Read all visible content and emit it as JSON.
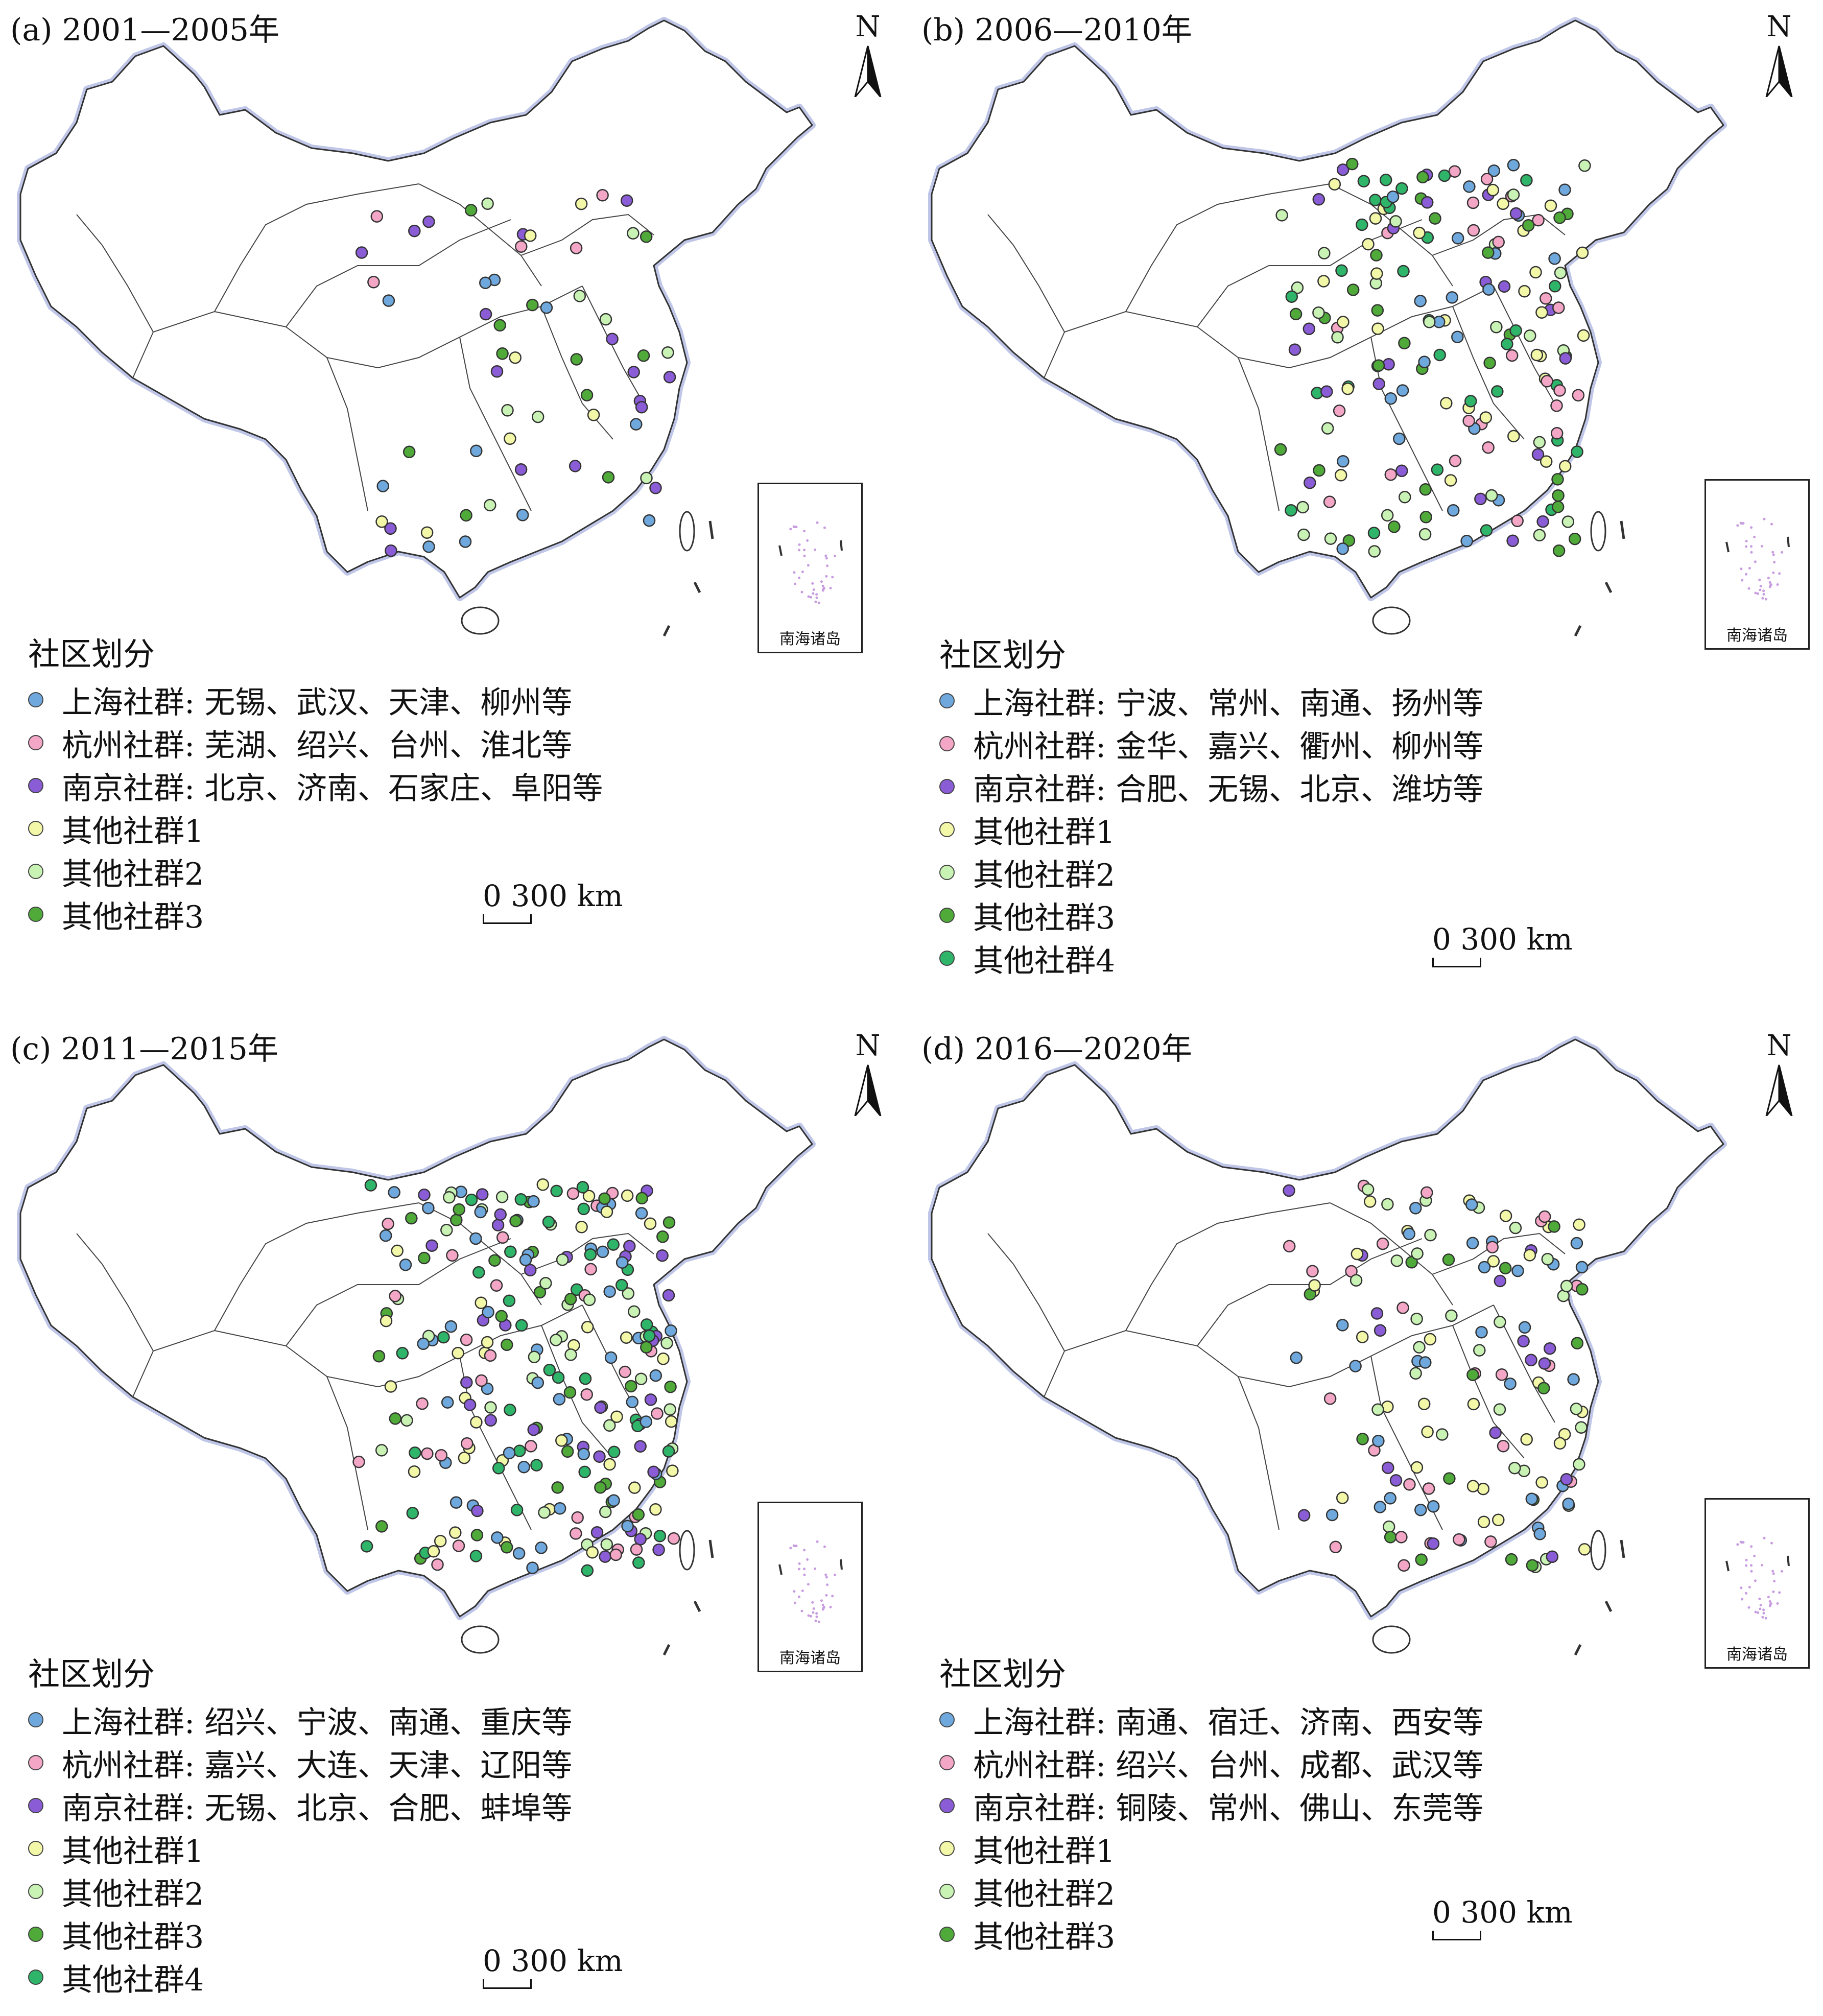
{
  "colors": {
    "shanghai": "#6fa8dc",
    "hangzhou": "#f4a6c6",
    "nanjing": "#8a5cd6",
    "other1": "#f3f7a8",
    "other2": "#c9f2b5",
    "other3": "#4faa3a",
    "other4": "#2fb56a"
  },
  "inset_label": "南海诸岛",
  "north_label": "N",
  "panels": [
    {
      "title": "(a) 2001—2005年",
      "legend_title": "社区划分",
      "legend": [
        {
          "key": "shanghai",
          "label": "上海社群: 无锡、武汉、天津、柳州等"
        },
        {
          "key": "hangzhou",
          "label": "杭州社群: 芜湖、绍兴、台州、淮北等"
        },
        {
          "key": "nanjing",
          "label": "南京社群: 北京、济南、石家庄、阜阳等"
        },
        {
          "key": "other1",
          "label": "其他社群1"
        },
        {
          "key": "other2",
          "label": "其他社群2"
        },
        {
          "key": "other3",
          "label": "其他社群3"
        }
      ],
      "scale": "0  300 km"
    },
    {
      "title": "(b) 2006—2010年",
      "legend_title": "社区划分",
      "legend": [
        {
          "key": "shanghai",
          "label": "上海社群: 宁波、常州、南通、扬州等"
        },
        {
          "key": "hangzhou",
          "label": "杭州社群: 金华、嘉兴、衢州、柳州等"
        },
        {
          "key": "nanjing",
          "label": "南京社群: 合肥、无锡、北京、潍坊等"
        },
        {
          "key": "other1",
          "label": "其他社群1"
        },
        {
          "key": "other2",
          "label": "其他社群2"
        },
        {
          "key": "other3",
          "label": "其他社群3"
        },
        {
          "key": "other4",
          "label": "其他社群4"
        }
      ],
      "scale": "0  300 km"
    },
    {
      "title": "(c) 2011—2015年",
      "legend_title": "社区划分",
      "legend": [
        {
          "key": "shanghai",
          "label": "上海社群: 绍兴、宁波、南通、重庆等"
        },
        {
          "key": "hangzhou",
          "label": "杭州社群: 嘉兴、大连、天津、辽阳等"
        },
        {
          "key": "nanjing",
          "label": "南京社群: 无锡、北京、合肥、蚌埠等"
        },
        {
          "key": "other1",
          "label": "其他社群1"
        },
        {
          "key": "other2",
          "label": "其他社群2"
        },
        {
          "key": "other3",
          "label": "其他社群3"
        },
        {
          "key": "other4",
          "label": "其他社群4"
        }
      ],
      "scale": "0  300 km"
    },
    {
      "title": "(d) 2016—2020年",
      "legend_title": "社区划分",
      "legend": [
        {
          "key": "shanghai",
          "label": "上海社群: 南通、宿迁、济南、西安等"
        },
        {
          "key": "hangzhou",
          "label": "杭州社群: 绍兴、台州、成都、武汉等"
        },
        {
          "key": "nanjing",
          "label": "南京社群: 铜陵、常州、佛山、东莞等"
        },
        {
          "key": "other1",
          "label": "其他社群1"
        },
        {
          "key": "other2",
          "label": "其他社群2"
        },
        {
          "key": "other3",
          "label": "其他社群3"
        }
      ],
      "scale": "0  300 km"
    }
  ]
}
